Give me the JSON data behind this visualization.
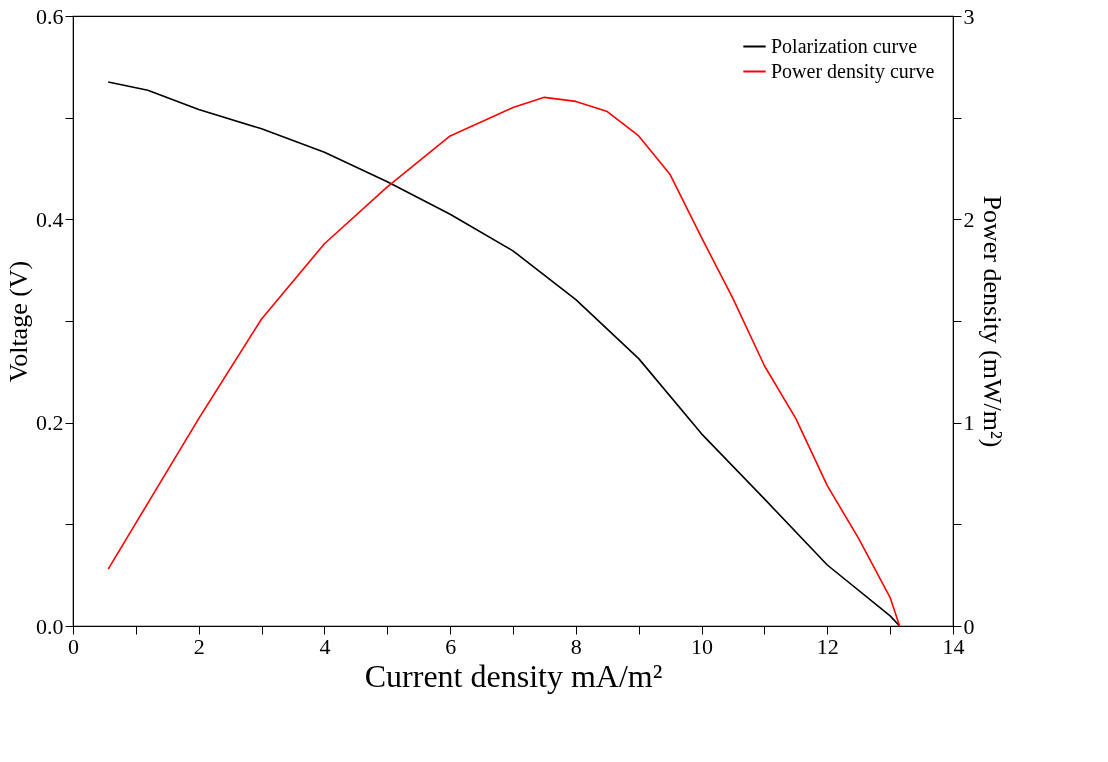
{
  "chart_data": {
    "type": "line",
    "xlabel": "Current density mA/m²",
    "ylabel": "Voltage (V)",
    "y2label": "Power density (mW/m²)",
    "xlim": [
      0,
      14
    ],
    "xticks": [
      0,
      {
        "value": 1,
        "label": null
      },
      2,
      {
        "value": 3,
        "label": null
      },
      4,
      {
        "value": 5,
        "label": null
      },
      6,
      {
        "value": 7,
        "label": null
      },
      8,
      {
        "value": 9,
        "label": null
      },
      10,
      {
        "value": 11,
        "label": null
      },
      12,
      {
        "value": 13,
        "label": null
      },
      14
    ],
    "ylim": [
      0,
      0.6
    ],
    "yticks": [
      {
        "value": 0,
        "label": "0.0"
      },
      {
        "value": 0.1,
        "label": null
      },
      0.2,
      {
        "value": 0.3,
        "label": null
      },
      0.4,
      {
        "value": 0.5,
        "label": null
      },
      0.6
    ],
    "y2lim": [
      0,
      3
    ],
    "y2ticks": [
      0,
      {
        "value": 0.5,
        "label": null
      },
      1,
      {
        "value": 1.5,
        "label": null
      },
      2,
      {
        "value": 2.5,
        "label": null
      },
      3
    ],
    "grid": false,
    "legend": "top right",
    "marker": "none",
    "line_style": "solid",
    "series": [
      {
        "name": "Polarization curve",
        "color": "#000000",
        "x": [
          0.56,
          1.19,
          2,
          3,
          4,
          5,
          6,
          7,
          8,
          9,
          10,
          11,
          12,
          13,
          13.15
        ],
        "values": [
          0.535,
          0.527,
          0.508,
          0.489,
          0.466,
          0.437,
          0.405,
          0.369,
          0.321,
          0.263,
          0.189,
          0.125,
          0.06,
          0.01,
          0.0
        ]
      },
      {
        "name": "Power density curve",
        "color": "#ff0000",
        "axis": "y2",
        "x": [
          0.56,
          2,
          3,
          4,
          5,
          6,
          7,
          7.5,
          8,
          8.5,
          9,
          9.5,
          10,
          10.5,
          11,
          11.5,
          12,
          12.5,
          13,
          13.15
        ],
        "values": [
          0.28,
          1.02,
          1.51,
          1.88,
          2.16,
          2.41,
          2.55,
          2.6,
          2.58,
          2.53,
          2.41,
          2.22,
          1.91,
          1.61,
          1.28,
          1.02,
          0.69,
          0.43,
          0.14,
          0.0
        ]
      }
    ]
  }
}
